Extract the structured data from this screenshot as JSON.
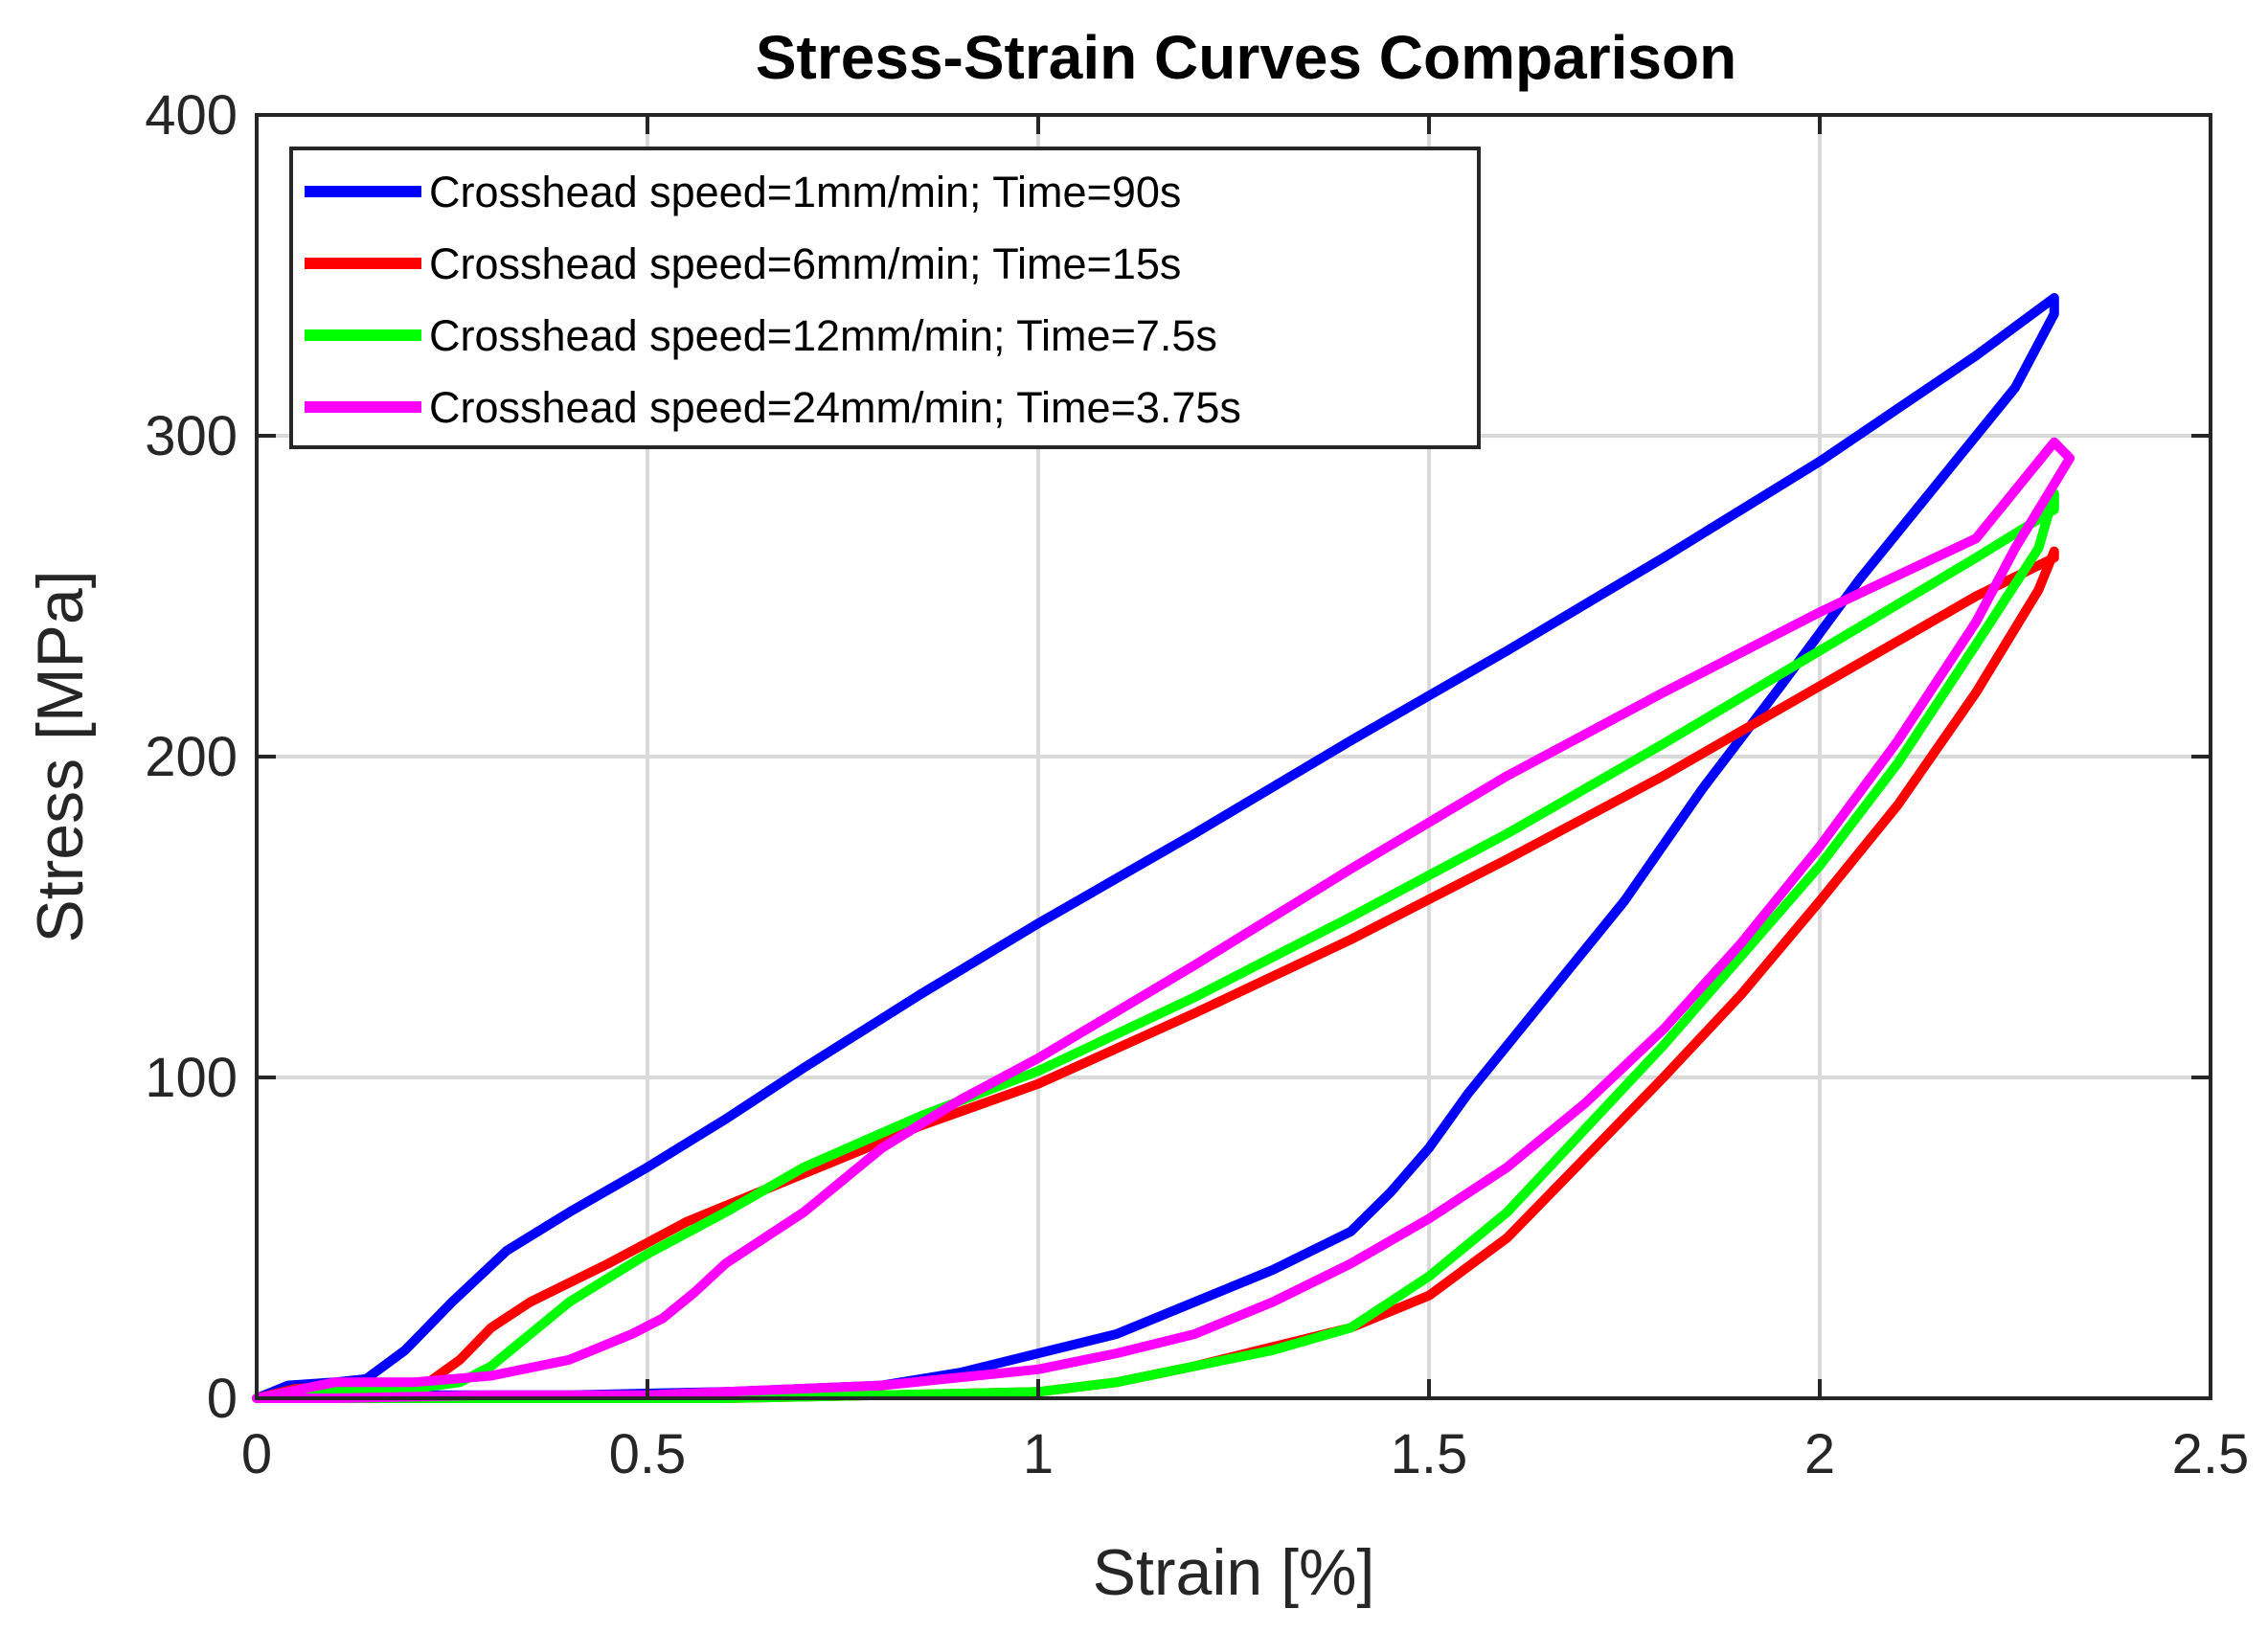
{
  "chart_data": {
    "type": "line",
    "title": "Stress-Strain Curves Comparison",
    "xlabel": "Strain [%]",
    "ylabel": "Stress [MPa]",
    "xlim": [
      0,
      2.5
    ],
    "ylim": [
      0,
      400
    ],
    "xticks": [
      0,
      0.5,
      1,
      1.5,
      2,
      2.5
    ],
    "xtick_labels": [
      "0",
      "0.5",
      "1",
      "1.5",
      "2",
      "2.5"
    ],
    "yticks": [
      0,
      100,
      200,
      300,
      400
    ],
    "ytick_labels": [
      "0",
      "100",
      "200",
      "300",
      "400"
    ],
    "grid": true,
    "legend_position": "top-left",
    "series": [
      {
        "name": "Crosshead speed=1mm/min; Time=90s",
        "color": "#0000ff",
        "x": [
          0,
          0.04,
          0.1,
          0.14,
          0.19,
          0.25,
          0.32,
          0.4,
          0.5,
          0.6,
          0.7,
          0.85,
          1.0,
          1.2,
          1.4,
          1.6,
          1.8,
          2.0,
          2.2,
          2.3,
          2.3,
          2.25,
          2.15,
          2.05,
          1.95,
          1.85,
          1.75,
          1.65,
          1.55,
          1.5,
          1.45,
          1.4,
          1.3,
          1.2,
          1.1,
          1.0,
          0.9,
          0.8,
          0.6,
          0.4,
          0.2,
          0.05,
          0
        ],
        "y": [
          0,
          4,
          5,
          6,
          15,
          30,
          46,
          58,
          72,
          87,
          103,
          126,
          148,
          176,
          205,
          233,
          262,
          292,
          325,
          343,
          338,
          315,
          285,
          255,
          222,
          190,
          155,
          125,
          95,
          78,
          64,
          52,
          40,
          30,
          20,
          14,
          8,
          4,
          2,
          1,
          1,
          1,
          0
        ]
      },
      {
        "name": "Crosshead speed=6mm/min; Time=15s",
        "color": "#ff0000",
        "x": [
          0,
          0.05,
          0.15,
          0.22,
          0.26,
          0.3,
          0.35,
          0.45,
          0.55,
          0.7,
          0.85,
          1.0,
          1.2,
          1.4,
          1.6,
          1.8,
          2.0,
          2.2,
          2.3,
          2.3,
          2.28,
          2.2,
          2.1,
          2.0,
          1.9,
          1.8,
          1.7,
          1.6,
          1.5,
          1.4,
          1.3,
          1.2,
          1.1,
          1.0,
          0.8,
          0.6,
          0.4,
          0.2,
          0
        ],
        "y": [
          0,
          3,
          4,
          5,
          12,
          22,
          30,
          42,
          55,
          70,
          85,
          98,
          120,
          143,
          168,
          194,
          222,
          250,
          262,
          264,
          252,
          220,
          185,
          155,
          126,
          100,
          75,
          50,
          32,
          22,
          16,
          10,
          5,
          2,
          1,
          0,
          0,
          0,
          0
        ]
      },
      {
        "name": "Crosshead speed=12mm/min; Time=7.5s",
        "color": "#00ff00",
        "x": [
          0,
          0.1,
          0.2,
          0.26,
          0.3,
          0.35,
          0.4,
          0.5,
          0.6,
          0.7,
          0.85,
          1.0,
          1.2,
          1.4,
          1.6,
          1.8,
          2.0,
          2.2,
          2.3,
          2.3,
          2.28,
          2.2,
          2.1,
          2.0,
          1.9,
          1.8,
          1.7,
          1.6,
          1.5,
          1.45,
          1.4,
          1.3,
          1.2,
          1.1,
          1.0,
          0.8,
          0.6,
          0.4,
          0.2,
          0
        ],
        "y": [
          0,
          2,
          3,
          5,
          10,
          20,
          30,
          45,
          58,
          72,
          88,
          102,
          125,
          150,
          176,
          204,
          233,
          262,
          277,
          282,
          265,
          235,
          198,
          166,
          138,
          110,
          84,
          58,
          38,
          30,
          22,
          15,
          10,
          5,
          2,
          1,
          0,
          0,
          0,
          0
        ]
      },
      {
        "name": "Crosshead speed=24mm/min; Time=3.75s",
        "color": "#ff00ff",
        "x": [
          0,
          0.1,
          0.2,
          0.3,
          0.4,
          0.48,
          0.52,
          0.56,
          0.6,
          0.7,
          0.8,
          0.9,
          1.0,
          1.2,
          1.4,
          1.6,
          1.8,
          2.0,
          2.2,
          2.3,
          2.32,
          2.3,
          2.25,
          2.2,
          2.1,
          2.0,
          1.9,
          1.8,
          1.7,
          1.6,
          1.5,
          1.4,
          1.3,
          1.2,
          1.1,
          1.0,
          0.8,
          0.6,
          0.5,
          0.3,
          0.1,
          0
        ],
        "y": [
          0,
          5,
          5,
          7,
          12,
          20,
          25,
          33,
          42,
          58,
          78,
          93,
          106,
          135,
          165,
          194,
          220,
          245,
          268,
          298,
          293,
          285,
          265,
          242,
          205,
          172,
          142,
          115,
          92,
          72,
          56,
          42,
          30,
          20,
          14,
          9,
          4,
          2,
          1,
          1,
          0,
          0
        ]
      }
    ]
  }
}
